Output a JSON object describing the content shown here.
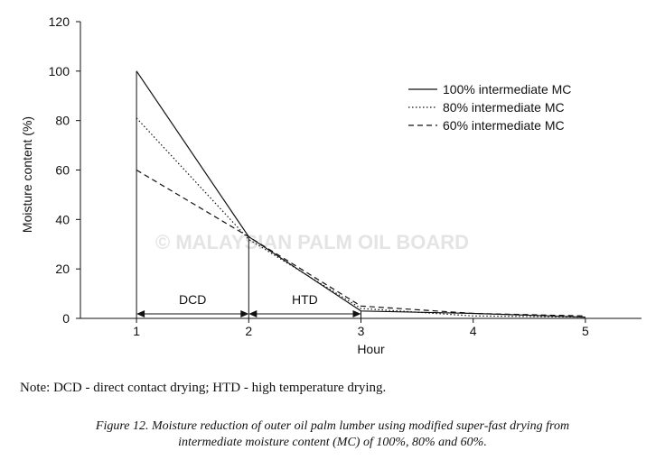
{
  "watermark": "© MALAYSIAN PALM OIL BOARD",
  "note": "Note: DCD - direct contact drying; HTD - high temperature drying.",
  "caption": {
    "line1": "Figure 12. Moisture reduction of outer oil palm lumber using modified super-fast drying from",
    "line2": "intermediate moisture content (MC) of 100%, 80% and 60%."
  },
  "colors": {
    "ink": "#111111",
    "watermark": "#e4e4e4"
  },
  "chart_data": {
    "type": "line",
    "xlabel": "Hour",
    "ylabel": "Moisture content (%)",
    "xlim": [
      0.5,
      5.5
    ],
    "ylim": [
      0,
      120
    ],
    "xticks": [
      1,
      2,
      3,
      4,
      5
    ],
    "yticks": [
      0,
      20,
      40,
      60,
      80,
      100,
      120
    ],
    "grid": false,
    "legend_position": "top-right",
    "series": [
      {
        "name": "100% intermediate MC",
        "line_style": "solid",
        "points": [
          [
            1,
            100
          ],
          [
            2,
            33
          ],
          [
            3,
            3
          ],
          [
            4,
            2
          ],
          [
            5,
            0.5
          ]
        ]
      },
      {
        "name": "80% intermediate MC",
        "line_style": "dotted",
        "points": [
          [
            1,
            81
          ],
          [
            2,
            32
          ],
          [
            3,
            4
          ],
          [
            4,
            1
          ],
          [
            5,
            0.5
          ]
        ]
      },
      {
        "name": "60% intermediate MC",
        "line_style": "dashed",
        "points": [
          [
            1,
            60
          ],
          [
            2,
            33
          ],
          [
            3,
            5
          ],
          [
            4,
            2
          ],
          [
            5,
            1
          ]
        ]
      }
    ],
    "phase_annotations": [
      {
        "label": "DCD",
        "from": 1,
        "to": 2
      },
      {
        "label": "HTD",
        "from": 2,
        "to": 3
      }
    ]
  }
}
